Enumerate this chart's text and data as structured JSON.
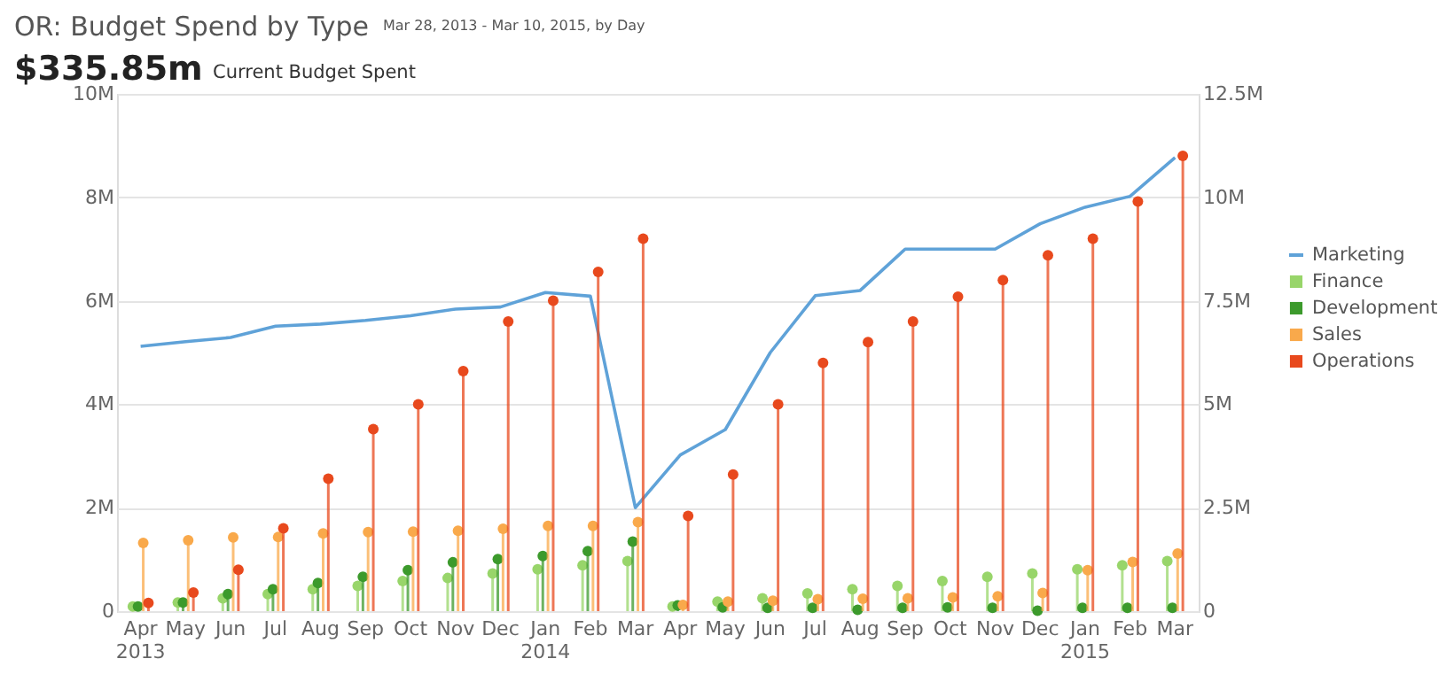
{
  "chart_data": {
    "type": "lollipop",
    "title": "OR: Budget Spend by Type",
    "annotations": [
      "Mar 28, 2013 - Mar 10, 2015, by Day",
      "$335.85m",
      "Current Budget Spent"
    ],
    "categories": [
      "Apr 2013",
      "May",
      "Jun",
      "Jul",
      "Aug",
      "Sep",
      "Oct",
      "Nov",
      "Dec",
      "Jan 2014",
      "Feb",
      "Mar",
      "Apr",
      "May",
      "Jun",
      "Jul",
      "Aug",
      "Sep",
      "Oct",
      "Nov",
      "Dec",
      "Jan 2015",
      "Feb",
      "Mar"
    ],
    "series": [
      {
        "name": "Marketing",
        "type": "line",
        "color": "#5fa2d8",
        "values": [
          5.12,
          5.21,
          5.29,
          5.51,
          5.55,
          5.62,
          5.71,
          5.84,
          5.88,
          6.16,
          6.09,
          2.0,
          3.02,
          3.51,
          5.0,
          6.1,
          6.2,
          7.0,
          7.0,
          7.0,
          7.49,
          7.81,
          8.02,
          8.77
        ]
      },
      {
        "name": "Finance",
        "marker": "circle",
        "axis": "y2",
        "color": "#98d56a",
        "values": [
          0.11,
          0.21,
          0.31,
          0.41,
          0.53,
          0.61,
          0.73,
          0.8,
          0.91,
          1.01,
          1.11,
          1.21,
          0.11,
          0.23,
          0.31,
          0.43,
          0.53,
          0.61,
          0.73,
          0.83,
          0.91,
          1.01,
          1.11,
          1.21
        ]
      },
      {
        "name": "Development",
        "marker": "circle",
        "axis": "y2",
        "color": "#3c9a2c",
        "values": [
          0.11,
          0.21,
          0.41,
          0.53,
          0.68,
          0.83,
          0.99,
          1.18,
          1.26,
          1.33,
          1.45,
          1.68,
          0.14,
          0.09,
          0.08,
          0.08,
          0.03,
          0.08,
          0.09,
          0.08,
          0.01,
          0.08,
          0.08,
          0.08
        ]
      },
      {
        "name": "Sales",
        "marker": "circle",
        "axis": "y2",
        "color": "#f9a94b",
        "values": [
          1.65,
          1.71,
          1.78,
          1.79,
          1.88,
          1.91,
          1.92,
          1.94,
          1.99,
          2.06,
          2.06,
          2.15,
          0.15,
          0.23,
          0.25,
          0.29,
          0.3,
          0.31,
          0.33,
          0.36,
          0.44,
          0.99,
          1.19,
          1.39
        ]
      },
      {
        "name": "Operations",
        "marker": "circle",
        "axis": "y2",
        "color": "#e8491d",
        "values": [
          0.2,
          0.45,
          1.0,
          2.0,
          3.2,
          4.4,
          5.0,
          5.8,
          7.0,
          7.5,
          8.2,
          9.0,
          2.3,
          3.3,
          5.0,
          6.0,
          6.5,
          7.0,
          7.6,
          8.0,
          8.6,
          9.0,
          9.9,
          11.0
        ]
      }
    ],
    "ylim": [
      0,
      10
    ],
    "yticks": [
      0,
      {
        "value": 2,
        "label": "2M"
      },
      {
        "value": 4,
        "label": "4M"
      },
      {
        "value": 6,
        "label": "6M"
      },
      {
        "value": 8,
        "label": "8M"
      },
      {
        "value": 10,
        "label": "10M"
      }
    ],
    "y2lim": [
      0,
      12.5
    ],
    "y2ticks": [
      0,
      {
        "value": 2.5,
        "label": "2.5M"
      },
      {
        "value": 5,
        "label": "5M"
      },
      {
        "value": 7.5,
        "label": "7.5M"
      },
      {
        "value": 10,
        "label": "10M"
      },
      {
        "value": 12.5,
        "label": "12.5M"
      }
    ],
    "grid": "y",
    "legend": "right",
    "line_style": "solid"
  }
}
